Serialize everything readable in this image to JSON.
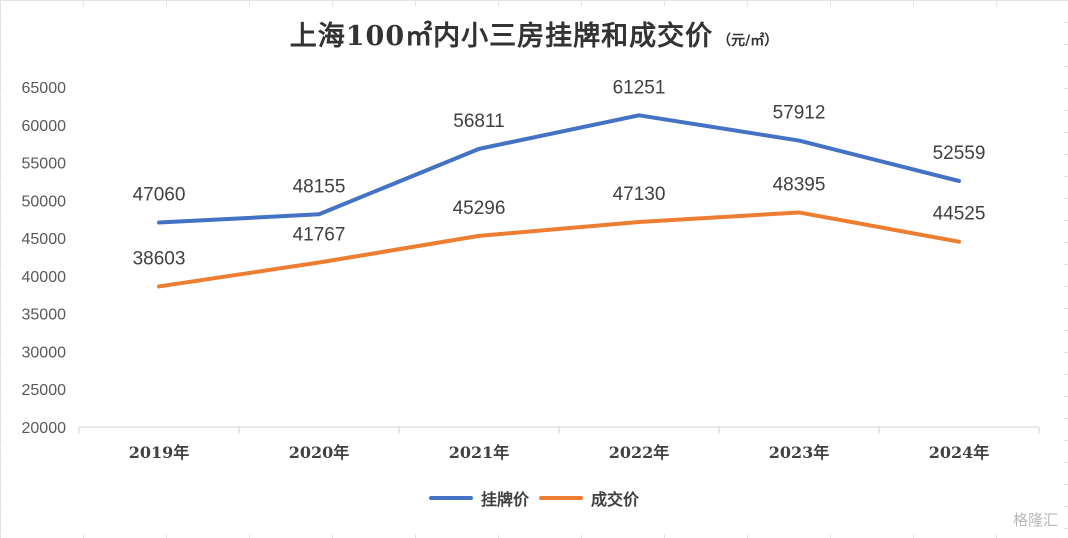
{
  "chart_data": {
    "type": "line",
    "title": "上海100㎡内小三房挂牌和成交价",
    "unit": "（元/㎡）",
    "categories": [
      "2019年",
      "2020年",
      "2021年",
      "2022年",
      "2023年",
      "2024年"
    ],
    "series": [
      {
        "name": "挂牌价",
        "values": [
          47060,
          48155,
          56811,
          61251,
          57912,
          52559
        ],
        "color": "#4472C4"
      },
      {
        "name": "成交价",
        "values": [
          38603,
          41767,
          45296,
          47130,
          48395,
          44525
        ],
        "color": "#ED7D31"
      }
    ],
    "ylim": [
      20000,
      65000
    ],
    "yticks": [
      "20000",
      "25000",
      "30000",
      "35000",
      "40000",
      "45000",
      "50000",
      "55000",
      "60000",
      "65000"
    ],
    "grid": false,
    "legend_position": "bottom"
  },
  "watermark": "格隆汇"
}
